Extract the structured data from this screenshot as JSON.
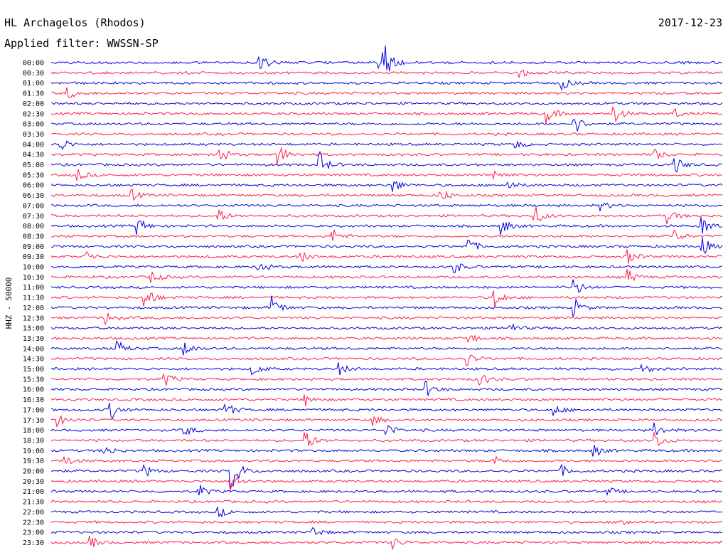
{
  "chart_data": {
    "type": "line",
    "title": "HL Archagelos (Rhodos)",
    "subtitle": "Applied filter: WWSSN-SP",
    "date": "2017-12-23",
    "ylabel": "HHZ - 50000",
    "colors": {
      "even_trace": "#0000e0",
      "odd_trace": "#ff1a4a"
    },
    "legend": "none",
    "grid": false,
    "traces": [
      {
        "label": "00:00",
        "events": [
          [
            0.31,
            14
          ],
          [
            0.495,
            28
          ],
          [
            0.49,
            10
          ]
        ]
      },
      {
        "label": "00:30",
        "events": [
          [
            0.7,
            6
          ]
        ]
      },
      {
        "label": "01:00",
        "events": [
          [
            0.76,
            10
          ]
        ]
      },
      {
        "label": "01:30",
        "events": [
          [
            0.025,
            8
          ]
        ]
      },
      {
        "label": "02:00",
        "events": []
      },
      {
        "label": "02:30",
        "events": [
          [
            0.74,
            12
          ],
          [
            0.84,
            12
          ],
          [
            0.93,
            6
          ]
        ]
      },
      {
        "label": "03:00",
        "events": [
          [
            0.78,
            14
          ]
        ]
      },
      {
        "label": "03:30",
        "events": []
      },
      {
        "label": "04:00",
        "events": [
          [
            0.015,
            9
          ],
          [
            0.69,
            7
          ]
        ]
      },
      {
        "label": "04:30",
        "events": [
          [
            0.25,
            14
          ],
          [
            0.34,
            14
          ],
          [
            0.9,
            8
          ]
        ]
      },
      {
        "label": "05:00",
        "events": [
          [
            0.4,
            18
          ],
          [
            0.93,
            12
          ]
        ]
      },
      {
        "label": "05:30",
        "events": [
          [
            0.04,
            8
          ],
          [
            0.66,
            10
          ]
        ]
      },
      {
        "label": "06:00",
        "events": [
          [
            0.51,
            10
          ],
          [
            0.68,
            8
          ]
        ]
      },
      {
        "label": "06:30",
        "events": [
          [
            0.12,
            8
          ],
          [
            0.58,
            10
          ]
        ]
      },
      {
        "label": "07:00",
        "events": [
          [
            0.82,
            6
          ]
        ]
      },
      {
        "label": "07:30",
        "events": [
          [
            0.25,
            10
          ],
          [
            0.72,
            16
          ],
          [
            0.92,
            10
          ]
        ]
      },
      {
        "label": "08:00",
        "events": [
          [
            0.13,
            12
          ],
          [
            0.67,
            14
          ],
          [
            0.97,
            14
          ]
        ]
      },
      {
        "label": "08:30",
        "events": [
          [
            0.42,
            10
          ],
          [
            0.93,
            8
          ]
        ]
      },
      {
        "label": "09:00",
        "events": [
          [
            0.62,
            14
          ],
          [
            0.97,
            14
          ]
        ]
      },
      {
        "label": "09:30",
        "events": [
          [
            0.05,
            10
          ],
          [
            0.37,
            10
          ],
          [
            0.86,
            10
          ]
        ]
      },
      {
        "label": "10:00",
        "events": [
          [
            0.31,
            10
          ],
          [
            0.6,
            10
          ]
        ]
      },
      {
        "label": "10:30",
        "events": [
          [
            0.15,
            10
          ],
          [
            0.86,
            10
          ]
        ]
      },
      {
        "label": "11:00",
        "events": [
          [
            0.78,
            12
          ]
        ]
      },
      {
        "label": "11:30",
        "events": [
          [
            0.14,
            18
          ],
          [
            0.66,
            16
          ]
        ]
      },
      {
        "label": "12:00",
        "events": [
          [
            0.33,
            16
          ],
          [
            0.78,
            12
          ]
        ]
      },
      {
        "label": "12:30",
        "events": [
          [
            0.08,
            10
          ]
        ]
      },
      {
        "label": "13:00",
        "events": [
          [
            0.68,
            10
          ]
        ]
      },
      {
        "label": "13:30",
        "events": [
          [
            0.62,
            10
          ]
        ]
      },
      {
        "label": "14:00",
        "events": [
          [
            0.1,
            10
          ],
          [
            0.2,
            10
          ]
        ]
      },
      {
        "label": "14:30",
        "events": [
          [
            0.62,
            10
          ]
        ]
      },
      {
        "label": "15:00",
        "events": [
          [
            0.3,
            10
          ],
          [
            0.43,
            8
          ],
          [
            0.88,
            8
          ]
        ]
      },
      {
        "label": "15:30",
        "events": [
          [
            0.17,
            10
          ],
          [
            0.64,
            10
          ]
        ]
      },
      {
        "label": "16:00",
        "events": [
          [
            0.56,
            10
          ]
        ]
      },
      {
        "label": "16:30",
        "events": [
          [
            0.38,
            8
          ]
        ]
      },
      {
        "label": "17:00",
        "events": [
          [
            0.09,
            12
          ],
          [
            0.26,
            12
          ],
          [
            0.75,
            8
          ]
        ]
      },
      {
        "label": "17:30",
        "events": [
          [
            0.01,
            8
          ],
          [
            0.48,
            8
          ]
        ]
      },
      {
        "label": "18:00",
        "events": [
          [
            0.2,
            8
          ],
          [
            0.5,
            10
          ],
          [
            0.9,
            10
          ]
        ]
      },
      {
        "label": "18:30",
        "events": [
          [
            0.38,
            14
          ],
          [
            0.9,
            14
          ]
        ]
      },
      {
        "label": "19:00",
        "events": [
          [
            0.08,
            8
          ],
          [
            0.81,
            8
          ]
        ]
      },
      {
        "label": "19:30",
        "events": [
          [
            0.02,
            8
          ],
          [
            0.66,
            8
          ]
        ]
      },
      {
        "label": "20:00",
        "events": [
          [
            0.27,
            28
          ],
          [
            0.14,
            8
          ],
          [
            0.76,
            8
          ]
        ]
      },
      {
        "label": "20:30",
        "events": [
          [
            0.27,
            14
          ]
        ]
      },
      {
        "label": "21:00",
        "events": [
          [
            0.22,
            10
          ],
          [
            0.83,
            6
          ]
        ]
      },
      {
        "label": "21:30",
        "events": []
      },
      {
        "label": "22:00",
        "events": [
          [
            0.25,
            8
          ]
        ]
      },
      {
        "label": "22:30",
        "events": [
          [
            0.85,
            8
          ]
        ]
      },
      {
        "label": "23:00",
        "events": [
          [
            0.39,
            8
          ]
        ]
      },
      {
        "label": "23:30",
        "events": [
          [
            0.06,
            8
          ],
          [
            0.51,
            8
          ]
        ]
      }
    ]
  }
}
